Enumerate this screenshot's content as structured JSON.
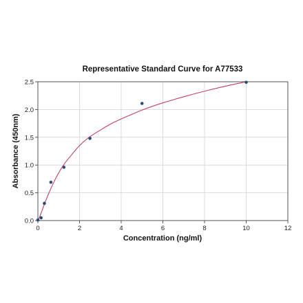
{
  "chart_data": {
    "type": "scatter",
    "title": "Representative Standard Curve for A77533",
    "xlabel": "Concentration (ng/ml)",
    "ylabel": "Absorbance (450nm)",
    "xlim": [
      0,
      12
    ],
    "ylim": [
      0,
      2.5
    ],
    "xticks": [
      "0",
      "2",
      "4",
      "6",
      "8",
      "10",
      "12"
    ],
    "yticks": [
      "0.0",
      "0.5",
      "1.0",
      "1.5",
      "2.0",
      "2.5"
    ],
    "grid": true,
    "legend": "none",
    "points": {
      "x": [
        0,
        0.156,
        0.313,
        0.625,
        1.25,
        2.5,
        5,
        10
      ],
      "y": [
        0.01,
        0.05,
        0.31,
        0.69,
        0.96,
        1.48,
        2.11,
        2.49
      ]
    },
    "fit_curve": {
      "type": "line",
      "x": [
        0,
        0.1,
        0.2,
        0.35,
        0.5,
        0.75,
        1,
        1.25,
        1.5,
        2,
        2.5,
        3,
        3.5,
        4,
        5,
        6,
        7,
        8,
        9,
        10
      ],
      "y": [
        0.0,
        0.08,
        0.18,
        0.33,
        0.47,
        0.68,
        0.86,
        1.01,
        1.13,
        1.35,
        1.51,
        1.63,
        1.74,
        1.83,
        1.99,
        2.12,
        2.23,
        2.33,
        2.42,
        2.5
      ]
    },
    "colors": {
      "points": "#2d4a7a",
      "curve": "#c2405f",
      "grid": "#d4d4d4"
    }
  }
}
